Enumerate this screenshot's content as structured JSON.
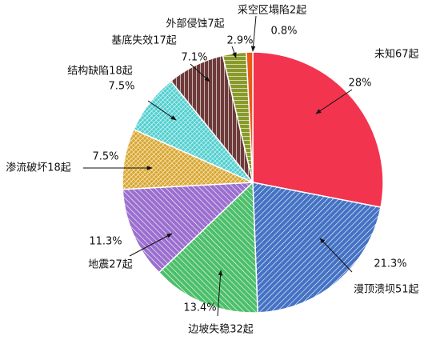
{
  "chart_data": {
    "type": "pie",
    "categories": [
      "未知67起",
      "漫顶溃坝51起",
      "边坡失稳32起",
      "地震27起",
      "渗流破坏18起",
      "结构缺陷18起",
      "基底失效17起",
      "外部侵蚀7起",
      "采空区塌陷2起"
    ],
    "values": [
      28,
      21.3,
      13.4,
      11.3,
      7.5,
      7.5,
      7.1,
      2.9,
      0.8
    ],
    "value_labels": [
      "28%",
      "21.3%",
      "13.4%",
      "11.3%",
      "7.5%",
      "7.5%",
      "7.1%",
      "2.9%",
      "0.8%"
    ],
    "colors": [
      "#f2344f",
      "#4472c4",
      "#4cbf6a",
      "#9b6fcf",
      "#d9a62e",
      "#4fcfcf",
      "#6e3b3b",
      "#8a9a2a",
      "#e85a1a"
    ]
  }
}
